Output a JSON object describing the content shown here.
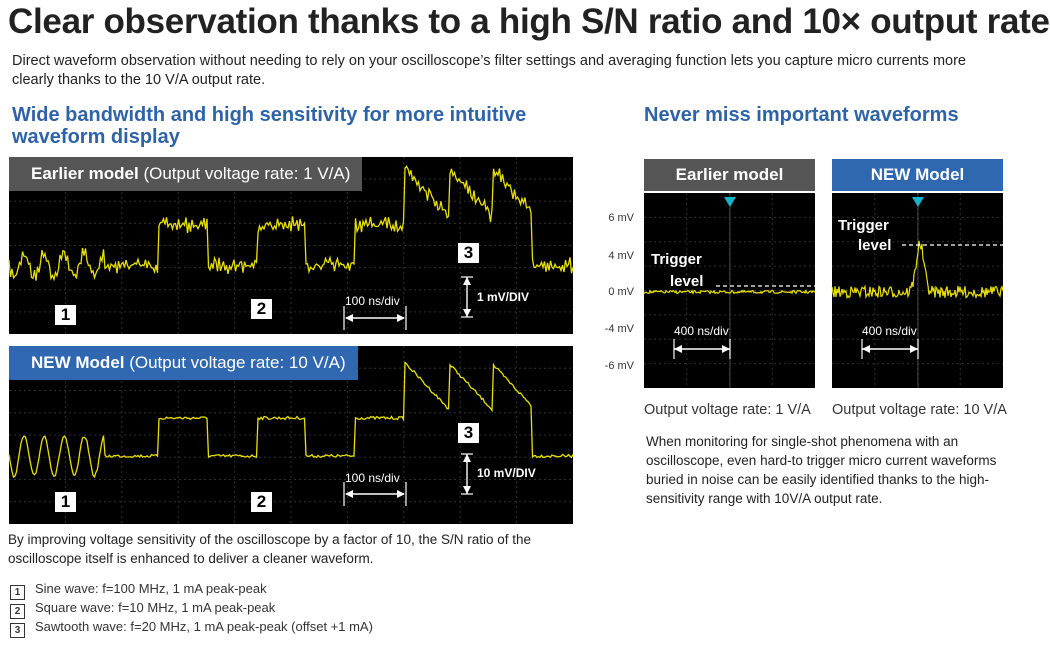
{
  "title": "Clear observation thanks to a high S/N ratio and 10× output rate",
  "intro": "Direct waveform observation without needing to rely on your oscilloscope’s filter settings and averaging function lets you capture micro currents more clearly thanks to the 10 V/A output rate.",
  "left": {
    "heading": "Wide bandwidth and high sensitivity for more intuitive waveform display",
    "earlier": {
      "label_bold": "Earlier model",
      "label_rest": " (Output voltage rate: 1 V/A)",
      "time_scale": "100 ns/div",
      "volt_scale": "1 mV/DIV"
    },
    "new": {
      "label_bold": "NEW Model",
      "label_rest": " (Output voltage rate: 10 V/A)",
      "time_scale": "100 ns/div",
      "volt_scale": "10 mV/DIV"
    },
    "markers": [
      "1",
      "2",
      "3"
    ],
    "caption": "By improving voltage sensitivity of the oscilloscope by a factor of 10, the S/N ratio of the oscilloscope itself is enhanced to deliver a cleaner waveform.",
    "legend": [
      {
        "num": "1",
        "text": "Sine wave: f=100 MHz, 1 mA peak-peak"
      },
      {
        "num": "2",
        "text": "Square wave: f=10 MHz, 1 mA peak-peak"
      },
      {
        "num": "3",
        "text": "Sawtooth wave: f=20 MHz, 1 mA peak-peak (offset +1 mA)"
      }
    ]
  },
  "right": {
    "heading": "Never miss important waveforms",
    "y_labels": [
      "6 mV",
      "4 mV",
      "0 mV",
      "-4 mV",
      "-6 mV"
    ],
    "earlier": {
      "tab": "Earlier model",
      "trigger_line1": "Trigger",
      "trigger_line2": "level",
      "time_scale": "400 ns/div",
      "output": "Output voltage rate: 1 V/A"
    },
    "new": {
      "tab": "NEW Model",
      "trigger_line1": "Trigger",
      "trigger_line2": "level",
      "time_scale": "400 ns/div",
      "output": "Output voltage rate: 10 V/A"
    },
    "caption": "When monitoring for single-shot phenomena with an oscilloscope, even hard-to trigger micro current waveforms buried in noise can be easily identified thanks to the high-sensitivity range with 10V/A output rate."
  },
  "colors": {
    "accent_blue": "#2e63a8",
    "tab_gray": "#555555",
    "tab_blue": "#2f67b0",
    "trace_yellow": "#e8e000",
    "trigger_cyan": "#17b3c8"
  }
}
